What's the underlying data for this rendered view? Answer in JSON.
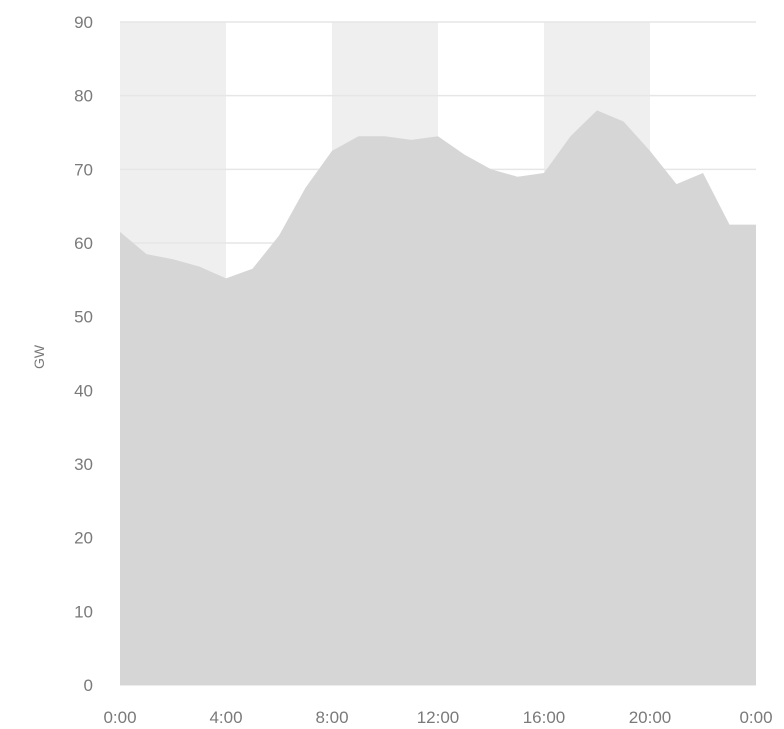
{
  "chart_data": {
    "type": "area",
    "ylabel": "GW",
    "xlabel": "",
    "title": "",
    "ylim": [
      0,
      90
    ],
    "y_ticks": [
      "0",
      "10",
      "20",
      "30",
      "40",
      "50",
      "60",
      "70",
      "80",
      "90"
    ],
    "x_ticks": [
      "0:00",
      "4:00",
      "8:00",
      "12:00",
      "16:00",
      "20:00",
      "0:00"
    ],
    "grid": true,
    "legend": "none",
    "shaded_bands_hours": [
      [
        0,
        4
      ],
      [
        8,
        12
      ],
      [
        16,
        20
      ]
    ],
    "colors": {
      "area": "#d6d6d6",
      "band": "#efefef",
      "grid": "#e6e6e6",
      "text": "#7a7a7a"
    },
    "series": [
      {
        "x": [
          0,
          1,
          2,
          3,
          4,
          5,
          6,
          7,
          8,
          9,
          10,
          11,
          12,
          13,
          14,
          15,
          16,
          17,
          18,
          19,
          20,
          21,
          22,
          23,
          24
        ],
        "values": [
          61.5,
          58.5,
          57.8,
          56.8,
          55.2,
          56.5,
          61.0,
          67.5,
          72.5,
          74.5,
          74.5,
          74.0,
          74.5,
          72.0,
          70.0,
          69.0,
          69.5,
          74.5,
          78.0,
          76.5,
          72.5,
          68.0,
          69.5,
          62.5,
          62.5
        ]
      }
    ]
  }
}
